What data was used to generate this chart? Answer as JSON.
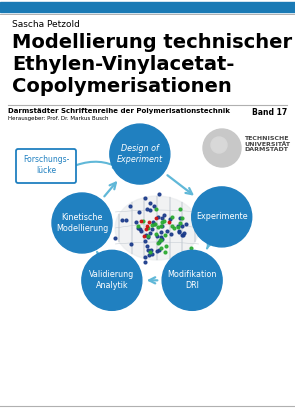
{
  "bg_color": "#ffffff",
  "top_bar_color": "#1a7ab5",
  "gray_line_color": "#b0b0b0",
  "author": "Sascha Petzold",
  "title_line1": "Modellierung technischer",
  "title_line2": "Ethylen-Vinylacetat-",
  "title_line3": "Copolymerisationen",
  "series_bold": "Darmstädter Schriftenreihe der Polymerisationstechnik",
  "series_sub": "Herausgeber: Prof. Dr. Markus Busch",
  "band": "Band 17",
  "circle_color": "#2080c0",
  "circle_labels": [
    "Design of\nExperiment",
    "Experimente",
    "Modifikation\nDRI",
    "Validierung\nAnalytik",
    "Kinetische\nModellierung"
  ],
  "box_label": "Forschungs-\nlücke",
  "tud_name": "TECHNISCHE\nUNIVERSITÄT\nDARMSTADT",
  "arrow_color": "#60b8d8"
}
